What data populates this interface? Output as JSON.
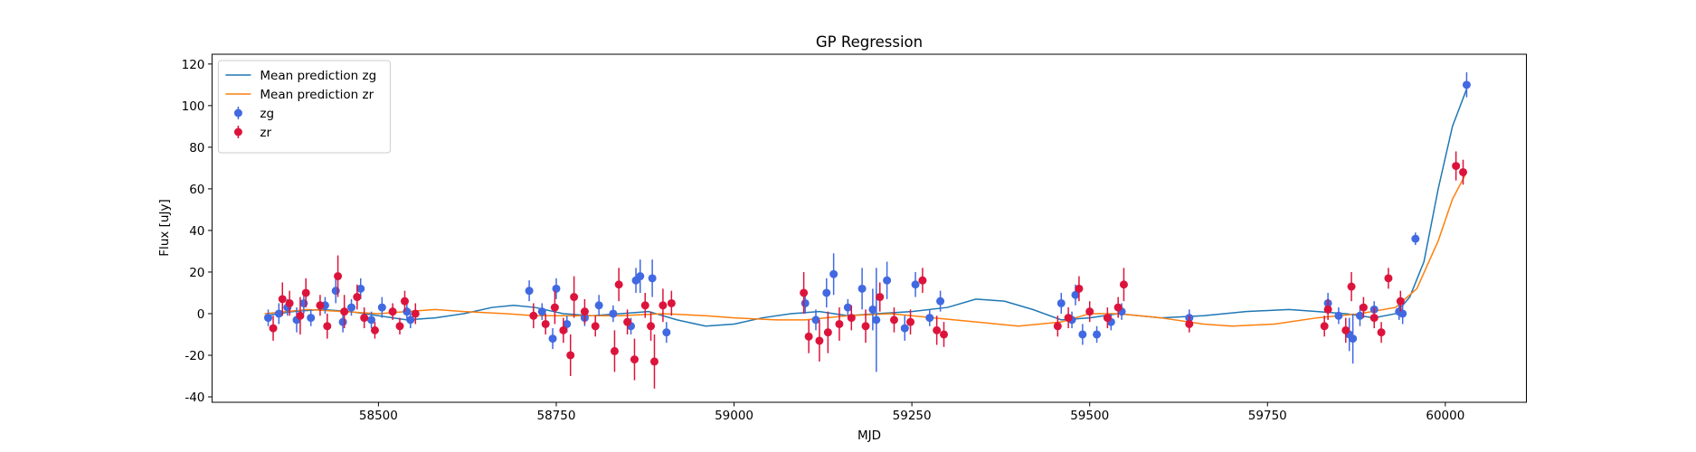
{
  "chart_data": {
    "type": "errorbar",
    "title": "GP Regression",
    "x_label": "MJD",
    "y_label": "Flux [uJy]",
    "xlim": [
      58266,
      60114
    ],
    "ylim": [
      -42.6,
      124.7
    ],
    "xticks": [
      58500,
      58750,
      59000,
      59250,
      59500,
      59750,
      60000
    ],
    "yticks": [
      -40,
      -20,
      0,
      20,
      40,
      60,
      80,
      100,
      120
    ],
    "legend": "upper left",
    "series": [
      {
        "name": "Mean prediction zg",
        "kind": "line",
        "color": "#1f77b4",
        "x": [
          58340,
          58380,
          58420,
          58460,
          58500,
          58540,
          58580,
          58620,
          58660,
          58690,
          58720,
          58760,
          58800,
          58840,
          58880,
          58920,
          58960,
          59000,
          59040,
          59080,
          59120,
          59160,
          59200,
          59250,
          59300,
          59340,
          59380,
          59420,
          59460,
          59500,
          59540,
          59600,
          59660,
          59720,
          59780,
          59820,
          59860,
          59900,
          59930,
          59950,
          59970,
          59990,
          60010,
          60030
        ],
        "values": [
          -1,
          1,
          2,
          1,
          -1,
          -3,
          -2,
          0,
          3,
          4,
          3,
          0,
          -1,
          0,
          1,
          -3,
          -6,
          -5,
          -2,
          0,
          1,
          -1,
          0,
          1,
          3,
          7,
          6,
          2,
          -3,
          -2,
          0,
          -2,
          -1,
          1,
          2,
          1,
          0,
          -2,
          0,
          8,
          25,
          60,
          90,
          108
        ]
      },
      {
        "name": "Mean prediction zr",
        "kind": "line",
        "color": "#ff7f0e",
        "x": [
          58340,
          58400,
          58450,
          58500,
          58540,
          58580,
          58620,
          58680,
          58720,
          58780,
          58840,
          58900,
          58960,
          59000,
          59060,
          59100,
          59160,
          59220,
          59280,
          59340,
          59400,
          59460,
          59500,
          59540,
          59600,
          59660,
          59700,
          59760,
          59820,
          59880,
          59930,
          59960,
          59990,
          60010,
          60030
        ],
        "values": [
          0,
          2,
          1,
          0,
          1,
          2,
          1,
          0,
          -1,
          -1,
          -1,
          0,
          -1,
          -2,
          -3,
          -3,
          -1,
          0,
          -2,
          -4,
          -6,
          -4,
          0,
          0,
          -2,
          -5,
          -6,
          -5,
          -2,
          0,
          3,
          12,
          35,
          55,
          68
        ]
      },
      {
        "name": "zg",
        "kind": "points",
        "color": "#4169e1",
        "x": [
          58345,
          58360,
          58372,
          58385,
          58395,
          58405,
          58425,
          58440,
          58450,
          58462,
          58475,
          58490,
          58505,
          58540,
          58545,
          58712,
          58730,
          58745,
          58750,
          58765,
          58790,
          58810,
          58830,
          58855,
          58862,
          58868,
          58885,
          58905,
          59100,
          59115,
          59130,
          59140,
          59160,
          59180,
          59195,
          59200,
          59215,
          59240,
          59255,
          59275,
          59290,
          59460,
          59475,
          59480,
          59490,
          59510,
          59530,
          59545,
          59640,
          59835,
          59850,
          59865,
          59870,
          59880,
          59900,
          59935,
          59940,
          59958,
          60030
        ],
        "values": [
          -2,
          0,
          3,
          -3,
          5,
          -2,
          4,
          11,
          -4,
          3,
          12,
          -3,
          3,
          1,
          -3,
          11,
          1,
          -12,
          12,
          -5,
          -2,
          4,
          0,
          -6,
          16,
          18,
          17,
          -9,
          5,
          -3,
          10,
          19,
          3,
          12,
          2,
          -3,
          16,
          -7,
          14,
          -2,
          6,
          5,
          -3,
          9,
          -10,
          -10,
          -4,
          1,
          -2,
          5,
          -1,
          -10,
          -12,
          -1,
          2,
          1,
          0,
          36,
          110
        ],
        "errors": [
          4,
          5,
          4,
          6,
          5,
          4,
          4,
          6,
          5,
          4,
          5,
          4,
          5,
          4,
          4,
          5,
          4,
          5,
          5,
          4,
          4,
          5,
          4,
          4,
          6,
          8,
          9,
          5,
          5,
          5,
          7,
          10,
          4,
          10,
          10,
          25,
          9,
          6,
          6,
          4,
          5,
          5,
          4,
          5,
          5,
          4,
          4,
          4,
          4,
          5,
          4,
          8,
          12,
          5,
          4,
          4,
          5,
          3,
          6
        ]
      },
      {
        "name": "zr",
        "kind": "points",
        "color": "#dc143c",
        "x": [
          58352,
          58365,
          58375,
          58390,
          58398,
          58418,
          58428,
          58443,
          58452,
          58470,
          58480,
          58495,
          58520,
          58530,
          58537,
          58552,
          58718,
          58735,
          58748,
          58760,
          58770,
          58775,
          58790,
          58805,
          58832,
          58838,
          58850,
          58860,
          58875,
          58883,
          58888,
          58900,
          58912,
          59098,
          59105,
          59120,
          59132,
          59148,
          59165,
          59185,
          59205,
          59225,
          59248,
          59265,
          59285,
          59295,
          59455,
          59470,
          59485,
          59500,
          59525,
          59540,
          59548,
          59640,
          59830,
          59835,
          59860,
          59868,
          59885,
          59900,
          59910,
          59920,
          59937,
          60015,
          60025
        ],
        "values": [
          -7,
          7,
          5,
          -1,
          10,
          4,
          -6,
          18,
          1,
          8,
          -2,
          -8,
          1,
          -6,
          6,
          0,
          -1,
          -5,
          3,
          -8,
          -20,
          8,
          1,
          -6,
          -18,
          14,
          -4,
          -22,
          4,
          -6,
          -23,
          4,
          5,
          10,
          -11,
          -13,
          -9,
          -5,
          -2,
          -6,
          8,
          -3,
          -4,
          16,
          -8,
          -10,
          -6,
          -2,
          12,
          1,
          -2,
          3,
          14,
          -5,
          -6,
          2,
          -8,
          13,
          3,
          -2,
          -9,
          17,
          6,
          71,
          68
        ],
        "errors": [
          6,
          8,
          6,
          9,
          7,
          5,
          6,
          10,
          8,
          6,
          5,
          4,
          4,
          4,
          5,
          5,
          6,
          5,
          8,
          6,
          10,
          10,
          6,
          5,
          10,
          8,
          6,
          10,
          6,
          7,
          13,
          8,
          6,
          10,
          8,
          10,
          10,
          8,
          6,
          8,
          7,
          6,
          6,
          6,
          7,
          6,
          5,
          5,
          6,
          5,
          5,
          5,
          8,
          4,
          5,
          5,
          6,
          7,
          5,
          5,
          5,
          5,
          5,
          7,
          6
        ]
      }
    ]
  }
}
